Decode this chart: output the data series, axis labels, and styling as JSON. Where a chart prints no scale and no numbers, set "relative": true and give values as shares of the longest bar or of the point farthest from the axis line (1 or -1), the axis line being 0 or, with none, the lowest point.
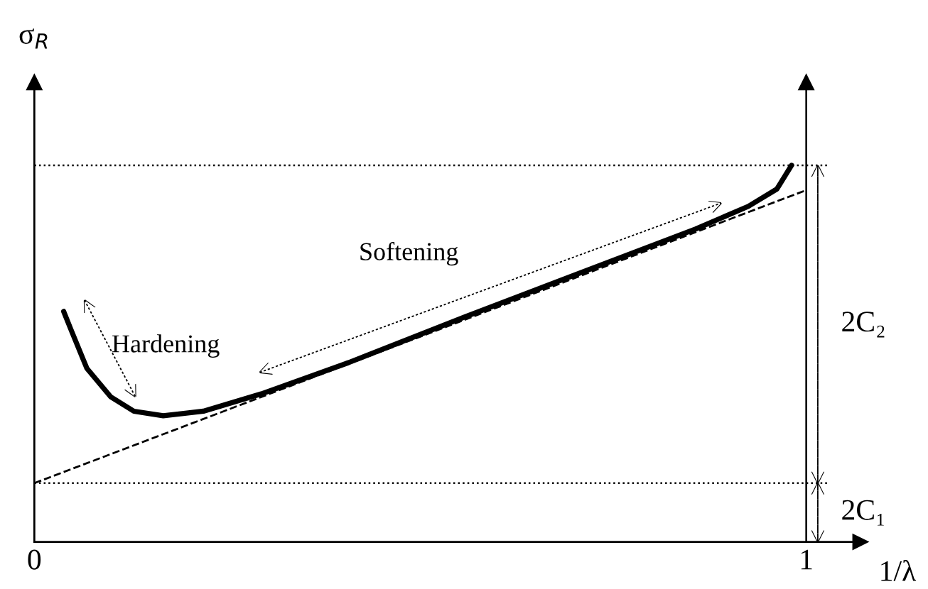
{
  "chart_data": {
    "type": "line",
    "relative": true,
    "xlabel": "1/λ",
    "ylabel": "σ$_{R}$",
    "xlim": [
      0,
      1.07
    ],
    "xticks": [
      0,
      1
    ],
    "grid": false,
    "series": [
      {
        "type": "line",
        "color": "#000000",
        "line_style": "solid",
        "x": [
          0.038,
          0.047,
          0.068,
          0.099,
          0.129,
          0.167,
          0.219,
          0.294,
          0.407,
          0.557,
          0.707,
          0.857,
          0.925,
          0.962,
          0.981
        ],
        "values": [
          0.612,
          0.566,
          0.461,
          0.385,
          0.347,
          0.335,
          0.347,
          0.393,
          0.476,
          0.597,
          0.714,
          0.831,
          0.891,
          0.937,
          1.0
        ]
      },
      {
        "type": "line",
        "color": "#000000",
        "line_style": "dashed",
        "x": [
          0,
          1
        ],
        "values": [
          0.156,
          0.934
        ]
      }
    ],
    "ref_lines": [
      {
        "axis": "y",
        "value": 0.156,
        "color": "#000000",
        "line_style": "dotted"
      },
      {
        "axis": "y",
        "value": 1.0,
        "color": "#000000",
        "line_style": "dotted"
      },
      {
        "axis": "x",
        "value": 1,
        "color": "#000000",
        "line_style": "solid"
      }
    ],
    "annotations": [
      "Hardening",
      "Softening",
      "2C₂",
      "2C₁"
    ]
  }
}
